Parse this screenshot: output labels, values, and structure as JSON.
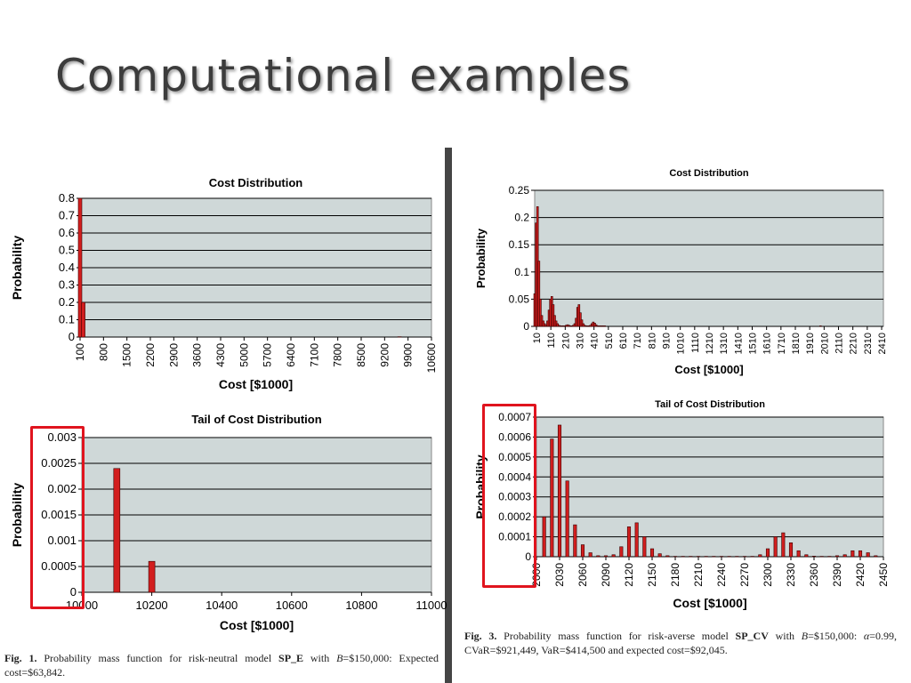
{
  "slide": {
    "title": "Computational examples"
  },
  "chart_data": [
    {
      "type": "bar",
      "title": "Cost Distribution",
      "xlabel": "Cost [$1000]",
      "ylabel": "Probability",
      "ylim": [
        0,
        0.8
      ],
      "yticks": [
        "0",
        "0.1",
        "0.2",
        "0.3",
        "0.4",
        "0.5",
        "0.6",
        "0.7",
        "0.8"
      ],
      "xlim": [
        0,
        11000
      ],
      "xticks": [
        "100",
        "800",
        "1500",
        "2200",
        "2900",
        "3600",
        "4300",
        "5000",
        "5700",
        "6400",
        "7100",
        "7800",
        "8500",
        "9200",
        "9900",
        "10600"
      ],
      "x": [
        0,
        100,
        10000
      ],
      "values": [
        0.8,
        0.2,
        0.002
      ],
      "grid": true
    },
    {
      "type": "bar",
      "title": "Tail of Cost Distribution",
      "xlabel": "Cost [$1000]",
      "ylabel": "Probability",
      "ylim": [
        0,
        0.003
      ],
      "yticks": [
        "0",
        "0.0005",
        "0.001",
        "0.0015",
        "0.002",
        "0.0025",
        "0.003"
      ],
      "xlim": [
        10000,
        11000
      ],
      "xticks": [
        "10000",
        "10200",
        "10400",
        "10600",
        "10800",
        "11000"
      ],
      "x": [
        10100,
        10200
      ],
      "values": [
        0.0024,
        0.0006
      ],
      "grid": true
    },
    {
      "type": "bar",
      "title": "Cost Distribution",
      "xlabel": "Cost [$1000]",
      "ylabel": "Probability",
      "ylim": [
        0,
        0.25
      ],
      "yticks": [
        "0",
        "0.05",
        "0.1",
        "0.15",
        "0.2",
        "0.25"
      ],
      "xlim": [
        10,
        2450
      ],
      "xticks": [
        "10",
        "110",
        "210",
        "310",
        "410",
        "510",
        "610",
        "710",
        "810",
        "910",
        "1010",
        "1110",
        "1210",
        "1310",
        "1410",
        "1510",
        "1610",
        "1710",
        "1810",
        "1910",
        "2010",
        "2110",
        "2210",
        "2310",
        "2410"
      ],
      "x": [
        10,
        20,
        30,
        40,
        50,
        60,
        70,
        80,
        90,
        100,
        110,
        120,
        130,
        140,
        150,
        160,
        170,
        180,
        190,
        200,
        210,
        220,
        230,
        240,
        250,
        260,
        270,
        280,
        290,
        300,
        310,
        320,
        330,
        340,
        350,
        360,
        370,
        380,
        390,
        400,
        410,
        420,
        430,
        440,
        450,
        460,
        470,
        480,
        490,
        500,
        2010
      ],
      "values": [
        0.06,
        0.19,
        0.22,
        0.12,
        0.05,
        0.02,
        0.01,
        0.005,
        0.002,
        0.01,
        0.03,
        0.05,
        0.055,
        0.04,
        0.02,
        0.01,
        0.005,
        0.002,
        0.001,
        0.001,
        0.001,
        0.001,
        0.002,
        0.003,
        0.002,
        0.001,
        0.001,
        0.002,
        0.005,
        0.015,
        0.035,
        0.04,
        0.025,
        0.012,
        0.005,
        0.002,
        0.001,
        0.001,
        0.001,
        0.002,
        0.005,
        0.008,
        0.006,
        0.003,
        0.001,
        0.001,
        0.001,
        0.001,
        0.001,
        0.001,
        0.001
      ],
      "grid": true
    },
    {
      "type": "bar",
      "title": "Tail of Cost Distribution",
      "xlabel": "Cost [$1000]",
      "ylabel": "Probability",
      "ylim": [
        0,
        0.0007
      ],
      "yticks": [
        "0",
        "0.0001",
        "0.0002",
        "0.0003",
        "0.0004",
        "0.0005",
        "0.0006",
        "0.0007"
      ],
      "xlim": [
        2000,
        2450
      ],
      "xticks": [
        "2000",
        "2030",
        "2060",
        "2090",
        "2120",
        "2150",
        "2180",
        "2210",
        "2240",
        "2270",
        "2300",
        "2330",
        "2360",
        "2390",
        "2420",
        "2450"
      ],
      "x": [
        2010,
        2020,
        2030,
        2040,
        2050,
        2060,
        2070,
        2080,
        2090,
        2100,
        2110,
        2120,
        2130,
        2140,
        2150,
        2160,
        2170,
        2180,
        2190,
        2200,
        2210,
        2220,
        2230,
        2240,
        2250,
        2260,
        2270,
        2280,
        2290,
        2300,
        2310,
        2320,
        2330,
        2340,
        2350,
        2360,
        2370,
        2380,
        2390,
        2400,
        2410,
        2420,
        2430,
        2440
      ],
      "values": [
        0.0002,
        0.00059,
        0.00066,
        0.00038,
        0.00016,
        6e-05,
        2e-05,
        5e-06,
        5e-06,
        1e-05,
        5e-05,
        0.00015,
        0.00017,
        0.0001,
        4e-05,
        1.5e-05,
        5e-06,
        2e-06,
        2e-06,
        2e-06,
        2e-06,
        2e-06,
        2e-06,
        2e-06,
        2e-06,
        2e-06,
        2e-06,
        2e-06,
        1e-05,
        4e-05,
        0.0001,
        0.00012,
        7e-05,
        3e-05,
        1e-05,
        3e-06,
        2e-06,
        2e-06,
        5e-06,
        1e-05,
        3e-05,
        3e-05,
        2e-05,
        5e-06
      ],
      "grid": true
    }
  ],
  "captions": {
    "fig1": {
      "label": "Fig. 1.",
      "text1": " Probability mass function for risk-neutral model ",
      "model": "SP_E",
      "text2": " with ",
      "B": "B",
      "text3": "=$150,000: Expected cost=$63,842."
    },
    "fig3": {
      "label": "Fig. 3.",
      "text1": " Probability mass function for risk-averse model ",
      "model": "SP_CV",
      "text2": " with ",
      "B": "B",
      "text3": "=$150,000: ",
      "alpha": "α",
      "text4": "=0.99, CVaR=$921,449, VaR=$414,500 and expected cost=$92,045."
    }
  },
  "colors": {
    "plot_bg": "#cfd8d8",
    "bar": "#d21e1e",
    "bar_edge": "#3a0000",
    "highlight": "#e0141e",
    "divider": "#454545"
  }
}
